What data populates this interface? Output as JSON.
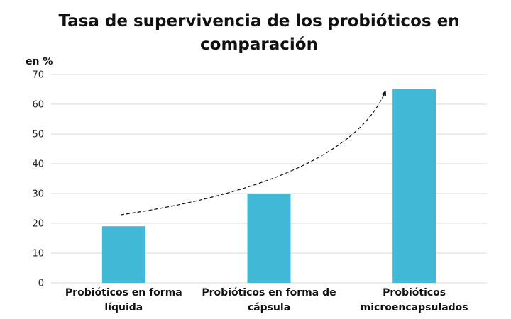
{
  "chart_data": {
    "type": "bar",
    "title": "Tasa de supervivencia de los probióticos en comparación",
    "ylabel": "en %",
    "xlabel": "",
    "categories": [
      [
        "Probióticos en forma",
        "líquida"
      ],
      [
        "Probióticos en forma de",
        "cápsula"
      ],
      [
        "Probióticos",
        "microencapsulados"
      ]
    ],
    "values": [
      19,
      30,
      65
    ],
    "ylim": [
      0,
      70
    ],
    "yticks": [
      0,
      10,
      20,
      30,
      40,
      50,
      60,
      70
    ],
    "grid": true,
    "legend": "none",
    "bar_color": "#41b8d5",
    "grid_color": "#d9d9d9",
    "annotation": "dashed curved trend arrow rising across the bars"
  }
}
